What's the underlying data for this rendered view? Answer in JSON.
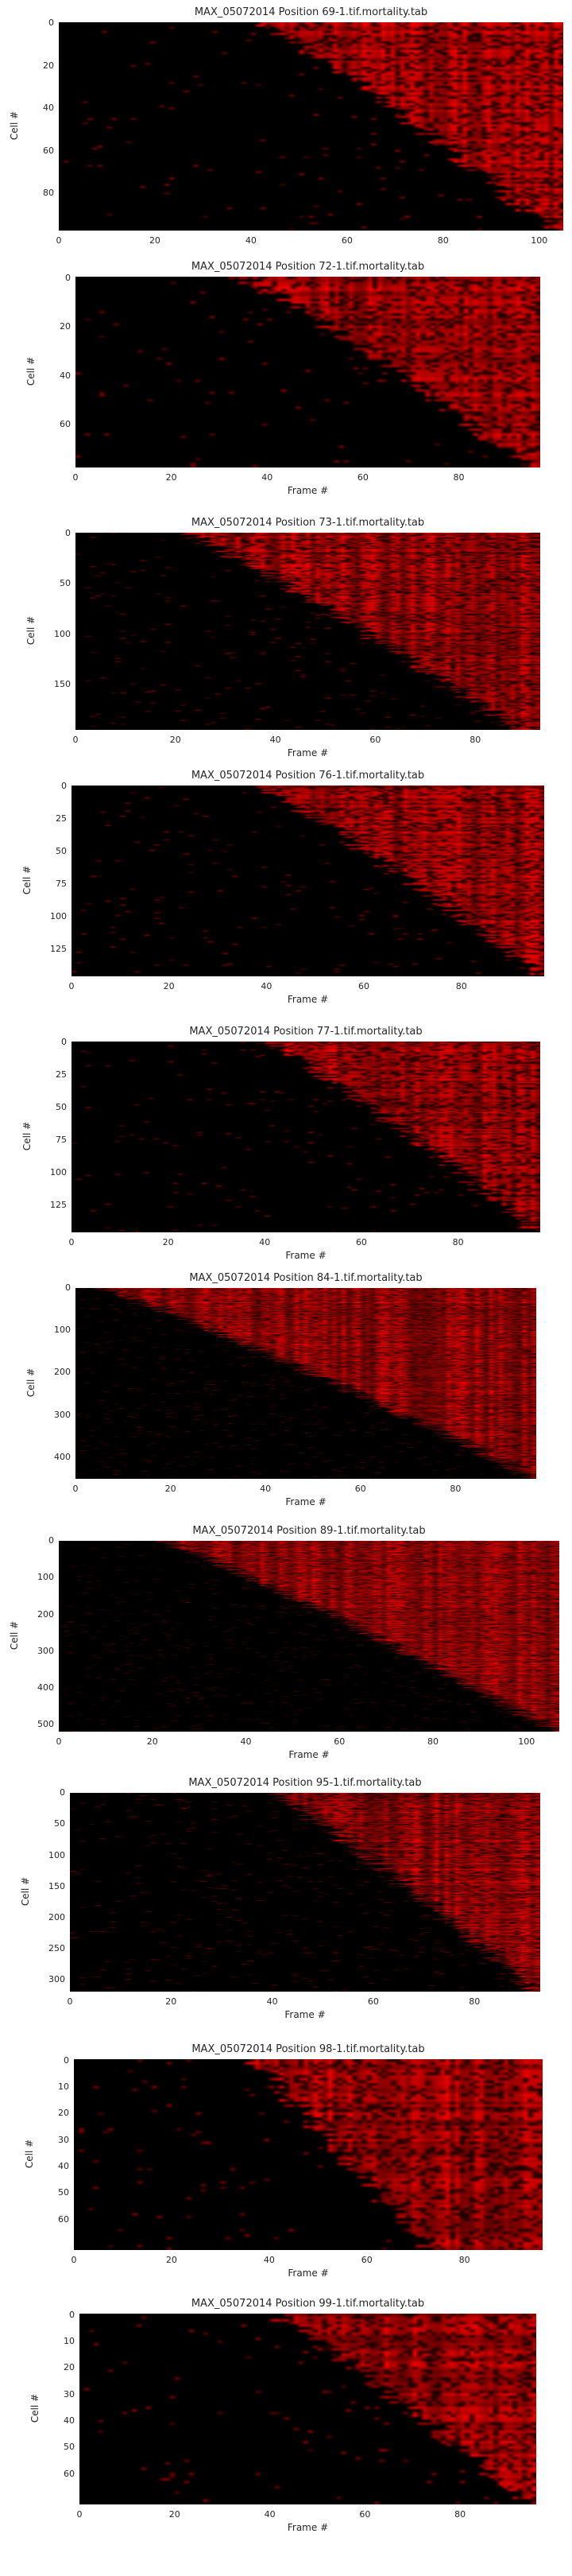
{
  "chart_data": [
    {
      "type": "heatmap",
      "title": "MAX_05072014 Position 69-1.tif.mortality.tab",
      "xlabel": "",
      "ylabel": "Cell #",
      "n_frames": 105,
      "n_cells": 98,
      "xticks": [
        0,
        20,
        40,
        60,
        80,
        100
      ],
      "yticks": [
        0,
        20,
        40,
        60,
        80
      ],
      "onset_start": 42,
      "onset_end": 102,
      "colormap": [
        "#000000",
        "#ff0000"
      ]
    },
    {
      "type": "heatmap",
      "title": "MAX_05072014 Position 72-1.tif.mortality.tab",
      "xlabel": "Frame #",
      "ylabel": "Cell #",
      "n_frames": 97,
      "n_cells": 78,
      "xticks": [
        0,
        20,
        40,
        60,
        80
      ],
      "yticks": [
        0,
        20,
        40,
        60
      ],
      "onset_start": 34,
      "onset_end": 94,
      "colormap": [
        "#000000",
        "#ff0000"
      ]
    },
    {
      "type": "heatmap",
      "title": "MAX_05072014 Position 73-1.tif.mortality.tab",
      "xlabel": "Frame #",
      "ylabel": "Cell #",
      "n_frames": 93,
      "n_cells": 195,
      "xticks": [
        0,
        20,
        40,
        60,
        80
      ],
      "yticks": [
        0,
        50,
        100,
        150
      ],
      "onset_start": 22,
      "onset_end": 88,
      "colormap": [
        "#000000",
        "#ff0000"
      ]
    },
    {
      "type": "heatmap",
      "title": "MAX_05072014 Position 76-1.tif.mortality.tab",
      "xlabel": "Frame #",
      "ylabel": "Cell #",
      "n_frames": 97,
      "n_cells": 146,
      "xticks": [
        0,
        20,
        40,
        60,
        80
      ],
      "yticks": [
        0,
        25,
        50,
        75,
        100,
        125
      ],
      "onset_start": 38,
      "onset_end": 96,
      "colormap": [
        "#000000",
        "#ff0000"
      ]
    },
    {
      "type": "heatmap",
      "title": "MAX_05072014 Position 77-1.tif.mortality.tab",
      "xlabel": "Frame #",
      "ylabel": "Cell #",
      "n_frames": 97,
      "n_cells": 146,
      "xticks": [
        0,
        20,
        40,
        60,
        80
      ],
      "yticks": [
        0,
        25,
        50,
        75,
        100,
        125
      ],
      "onset_start": 40,
      "onset_end": 96,
      "colormap": [
        "#000000",
        "#ff0000"
      ]
    },
    {
      "type": "heatmap",
      "title": "MAX_05072014 Position 84-1.tif.mortality.tab",
      "xlabel": "Frame #",
      "ylabel": "Cell #",
      "n_frames": 97,
      "n_cells": 452,
      "xticks": [
        0,
        20,
        40,
        60,
        80
      ],
      "yticks": [
        0,
        100,
        200,
        300,
        400
      ],
      "onset_start": 5,
      "onset_end": 97,
      "colormap": [
        "#000000",
        "#ff0000"
      ]
    },
    {
      "type": "heatmap",
      "title": "MAX_05072014 Position 89-1.tif.mortality.tab",
      "xlabel": "Frame #",
      "ylabel": "Cell #",
      "n_frames": 107,
      "n_cells": 520,
      "xticks": [
        0,
        20,
        40,
        60,
        80,
        100
      ],
      "yticks": [
        0,
        100,
        200,
        300,
        400,
        500
      ],
      "onset_start": 22,
      "onset_end": 106,
      "colormap": [
        "#000000",
        "#ff0000"
      ]
    },
    {
      "type": "heatmap",
      "title": "MAX_05072014 Position 95-1.tif.mortality.tab",
      "xlabel": "Frame #",
      "ylabel": "Cell #",
      "n_frames": 93,
      "n_cells": 320,
      "xticks": [
        0,
        20,
        40,
        60,
        80
      ],
      "yticks": [
        0,
        50,
        100,
        150,
        200,
        250,
        300
      ],
      "onset_start": 40,
      "onset_end": 92,
      "colormap": [
        "#000000",
        "#ff0000"
      ]
    },
    {
      "type": "heatmap",
      "title": "MAX_05072014 Position 98-1.tif.mortality.tab",
      "xlabel": "Frame #",
      "ylabel": "Cell #",
      "n_frames": 96,
      "n_cells": 72,
      "xticks": [
        0,
        20,
        40,
        60,
        80
      ],
      "yticks": [
        0,
        10,
        20,
        30,
        40,
        50,
        60
      ],
      "onset_start": 35,
      "onset_end": 72,
      "colormap": [
        "#000000",
        "#ff0000"
      ]
    },
    {
      "type": "heatmap",
      "title": "MAX_05072014 Position 99-1.tif.mortality.tab",
      "xlabel": "Frame #",
      "ylabel": "Cell #",
      "n_frames": 96,
      "n_cells": 72,
      "xticks": [
        0,
        20,
        40,
        60,
        80
      ],
      "yticks": [
        0,
        10,
        20,
        30,
        40,
        50,
        60
      ],
      "onset_start": 40,
      "onset_end": 94,
      "colormap": [
        "#000000",
        "#ff0000"
      ]
    }
  ]
}
